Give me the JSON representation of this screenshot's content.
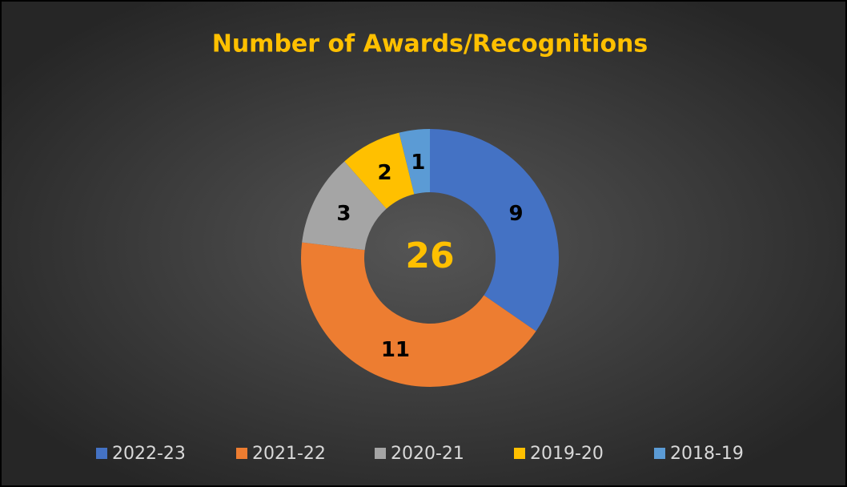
{
  "chart_data": {
    "type": "donut",
    "title": "Number of Awards/Recognitions",
    "categories": [
      "2022-23",
      "2021-22",
      "2020-21",
      "2019-20",
      "2018-19"
    ],
    "values": [
      9,
      11,
      3,
      2,
      1
    ],
    "colors": [
      "#4472c4",
      "#ed7d31",
      "#a5a5a5",
      "#ffc000",
      "#5b9bd5"
    ],
    "center_label": "26",
    "legend": "bottom"
  }
}
